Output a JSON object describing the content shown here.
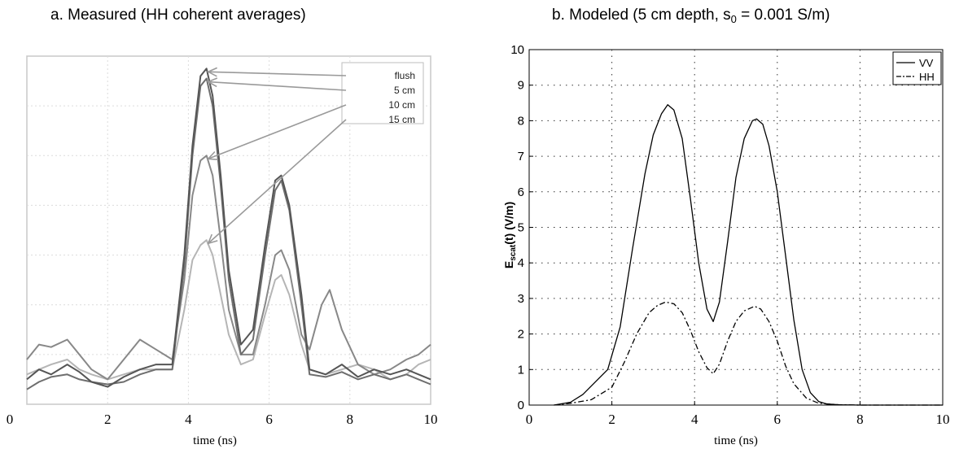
{
  "figure_title_a": "a.  Measured (HH coherent averages)",
  "figure_title_b_main": "b.  Modeled (5 cm depth, s",
  "figure_title_b_sub": "0",
  "figure_title_b_tail": " = 0.001 S/m)",
  "chart_data": [
    {
      "type": "line",
      "title": "a.  Measured (HH coherent averages)",
      "xlabel": "time (ns)",
      "ylabel": "",
      "xlim": [
        0,
        10
      ],
      "ylim": [
        0,
        7
      ],
      "x_ticks": [
        "0",
        "2",
        "4",
        "6",
        "8",
        "10"
      ],
      "y_ticks_labeled": false,
      "grid": true,
      "legend_position": "top-right",
      "legend_arrows": true,
      "series": [
        {
          "name": "flush",
          "color": "#555555",
          "x": [
            0,
            0.3,
            0.6,
            1.0,
            1.3,
            1.6,
            2.0,
            2.4,
            2.8,
            3.2,
            3.6,
            3.9,
            4.1,
            4.3,
            4.45,
            4.6,
            4.8,
            5.0,
            5.3,
            5.6,
            5.9,
            6.15,
            6.3,
            6.5,
            6.8,
            7.0,
            7.4,
            7.8,
            8.2,
            8.6,
            9.0,
            9.4,
            9.7,
            10
          ],
          "y": [
            0.5,
            0.7,
            0.6,
            0.8,
            0.65,
            0.45,
            0.35,
            0.55,
            0.7,
            0.8,
            0.8,
            3.0,
            5.2,
            6.6,
            6.75,
            6.2,
            4.6,
            2.7,
            1.2,
            1.5,
            3.2,
            4.5,
            4.6,
            4.0,
            2.2,
            0.7,
            0.6,
            0.8,
            0.55,
            0.7,
            0.6,
            0.7,
            0.6,
            0.5
          ]
        },
        {
          "name": "5 cm",
          "color": "#6e6e6e",
          "x": [
            0,
            0.3,
            0.6,
            1.0,
            1.3,
            1.6,
            2.0,
            2.4,
            2.8,
            3.2,
            3.6,
            3.9,
            4.1,
            4.3,
            4.45,
            4.6,
            4.8,
            5.0,
            5.3,
            5.6,
            5.9,
            6.15,
            6.3,
            6.5,
            6.8,
            7.0,
            7.4,
            7.8,
            8.2,
            8.6,
            9.0,
            9.4,
            9.7,
            10
          ],
          "y": [
            0.3,
            0.45,
            0.55,
            0.6,
            0.5,
            0.45,
            0.4,
            0.45,
            0.6,
            0.7,
            0.7,
            2.8,
            5.0,
            6.4,
            6.55,
            6.0,
            4.4,
            2.5,
            1.0,
            1.3,
            3.0,
            4.3,
            4.5,
            3.9,
            2.0,
            0.6,
            0.55,
            0.65,
            0.5,
            0.6,
            0.5,
            0.6,
            0.5,
            0.4
          ]
        },
        {
          "name": "10 cm",
          "color": "#888888",
          "x": [
            0,
            0.3,
            0.6,
            1.0,
            1.3,
            1.6,
            2.0,
            2.4,
            2.8,
            3.2,
            3.6,
            3.9,
            4.1,
            4.3,
            4.45,
            4.6,
            4.8,
            5.0,
            5.3,
            5.6,
            5.9,
            6.15,
            6.3,
            6.5,
            6.8,
            7.0,
            7.3,
            7.5,
            7.8,
            8.2,
            8.6,
            9.0,
            9.4,
            9.7,
            10
          ],
          "y": [
            0.9,
            1.2,
            1.15,
            1.3,
            1.0,
            0.7,
            0.5,
            0.9,
            1.3,
            1.1,
            0.9,
            2.5,
            4.2,
            4.9,
            5.0,
            4.6,
            3.3,
            1.9,
            1.0,
            1.0,
            2.0,
            3.0,
            3.1,
            2.7,
            1.4,
            1.1,
            2.0,
            2.3,
            1.5,
            0.8,
            0.6,
            0.7,
            0.9,
            1.0,
            1.2
          ]
        },
        {
          "name": "15 cm",
          "color": "#b5b5b5",
          "x": [
            0,
            0.3,
            0.6,
            1.0,
            1.3,
            1.6,
            2.0,
            2.4,
            2.8,
            3.2,
            3.6,
            3.9,
            4.1,
            4.3,
            4.45,
            4.6,
            4.8,
            5.0,
            5.3,
            5.6,
            5.9,
            6.15,
            6.3,
            6.5,
            6.8,
            7.0,
            7.4,
            7.8,
            8.2,
            8.6,
            9.0,
            9.4,
            9.7,
            10
          ],
          "y": [
            0.6,
            0.7,
            0.8,
            0.9,
            0.7,
            0.6,
            0.5,
            0.6,
            0.7,
            0.7,
            0.7,
            1.9,
            2.9,
            3.2,
            3.3,
            3.0,
            2.2,
            1.4,
            0.8,
            0.9,
            1.8,
            2.5,
            2.6,
            2.2,
            1.2,
            0.7,
            0.6,
            0.7,
            0.8,
            0.7,
            0.5,
            0.6,
            0.8,
            0.9
          ]
        }
      ]
    },
    {
      "type": "line",
      "title": "b.  Modeled (5 cm depth, s0 = 0.001 S/m)",
      "xlabel": "time (ns)",
      "ylabel": "E_scat(t) (V/m)",
      "ylabel_main": "E",
      "ylabel_sub": "scat",
      "ylabel_tail": "(t) (V/m)",
      "xlim": [
        0,
        10
      ],
      "ylim": [
        0,
        10
      ],
      "x_ticks": [
        "0",
        "2",
        "4",
        "6",
        "8",
        "10"
      ],
      "y_ticks": [
        "0",
        "1",
        "2",
        "3",
        "4",
        "5",
        "6",
        "7",
        "8",
        "9",
        "10"
      ],
      "grid": true,
      "legend_position": "top-right",
      "series": [
        {
          "name": "VV",
          "style": "solid",
          "color": "#000000",
          "x": [
            0.6,
            1.0,
            1.3,
            1.6,
            1.9,
            2.2,
            2.5,
            2.8,
            3.0,
            3.2,
            3.35,
            3.5,
            3.7,
            3.9,
            4.1,
            4.3,
            4.45,
            4.6,
            4.8,
            5.0,
            5.2,
            5.4,
            5.5,
            5.65,
            5.8,
            6.0,
            6.2,
            6.4,
            6.6,
            6.8,
            7.0,
            7.2,
            7.5,
            8.0,
            9.0,
            10.0
          ],
          "y": [
            0.0,
            0.08,
            0.3,
            0.65,
            1.0,
            2.2,
            4.4,
            6.5,
            7.6,
            8.2,
            8.45,
            8.3,
            7.5,
            5.8,
            4.0,
            2.7,
            2.35,
            2.9,
            4.6,
            6.4,
            7.5,
            8.0,
            8.05,
            7.9,
            7.3,
            6.0,
            4.2,
            2.4,
            1.0,
            0.35,
            0.1,
            0.03,
            0.01,
            0.0,
            0.0,
            0.0
          ]
        },
        {
          "name": "HH",
          "style": "dashdot",
          "color": "#000000",
          "x": [
            0.6,
            1.0,
            1.5,
            2.0,
            2.3,
            2.6,
            2.9,
            3.1,
            3.3,
            3.5,
            3.7,
            3.9,
            4.1,
            4.3,
            4.45,
            4.6,
            4.8,
            5.0,
            5.2,
            5.45,
            5.6,
            5.8,
            6.0,
            6.2,
            6.4,
            6.7,
            7.0,
            7.5,
            8.0,
            9.0,
            10.0
          ],
          "y": [
            0.0,
            0.05,
            0.15,
            0.5,
            1.2,
            2.0,
            2.6,
            2.8,
            2.9,
            2.85,
            2.6,
            2.1,
            1.5,
            1.05,
            0.88,
            1.15,
            1.8,
            2.35,
            2.65,
            2.78,
            2.7,
            2.35,
            1.8,
            1.1,
            0.6,
            0.2,
            0.05,
            0.01,
            0.0,
            0.0,
            0.0
          ]
        }
      ]
    }
  ]
}
